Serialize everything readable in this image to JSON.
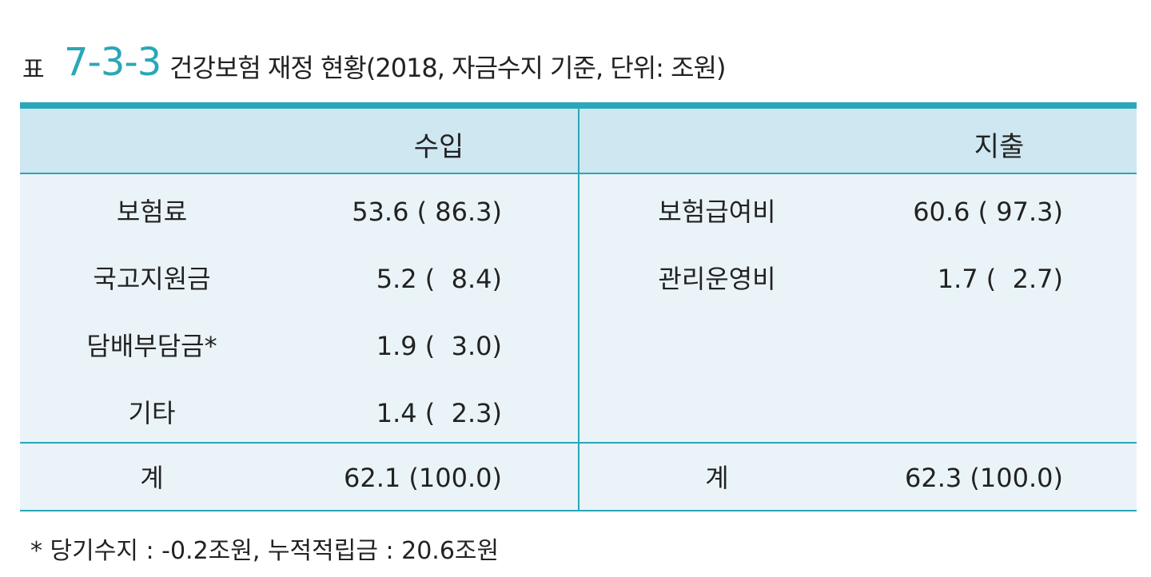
{
  "header": {
    "label": "표",
    "number": "7-3-3",
    "title": "건강보험 재정 현황(2018, 자금수지 기준, 단위: 조원)"
  },
  "table": {
    "columns": [
      "수입",
      "지출"
    ],
    "income": [
      [
        "보험료",
        "53.6 ( 86.3)"
      ],
      [
        "국고지원금",
        "5.2 (  8.4)"
      ],
      [
        "담배부담금*",
        "1.9 (  3.0)"
      ],
      [
        "기타",
        "1.4 (  2.3)"
      ]
    ],
    "expense": [
      [
        "보험급여비",
        "60.6 ( 97.3)"
      ],
      [
        "관리운영비",
        "1.7 (  2.7)"
      ]
    ],
    "totals": [
      [
        "계",
        "62.1 (100.0)"
      ],
      [
        "계",
        "62.3 (100.0)"
      ]
    ]
  },
  "footnote": "* 당기수지 : -0.2조원, 누적적립금 : 20.6조원"
}
